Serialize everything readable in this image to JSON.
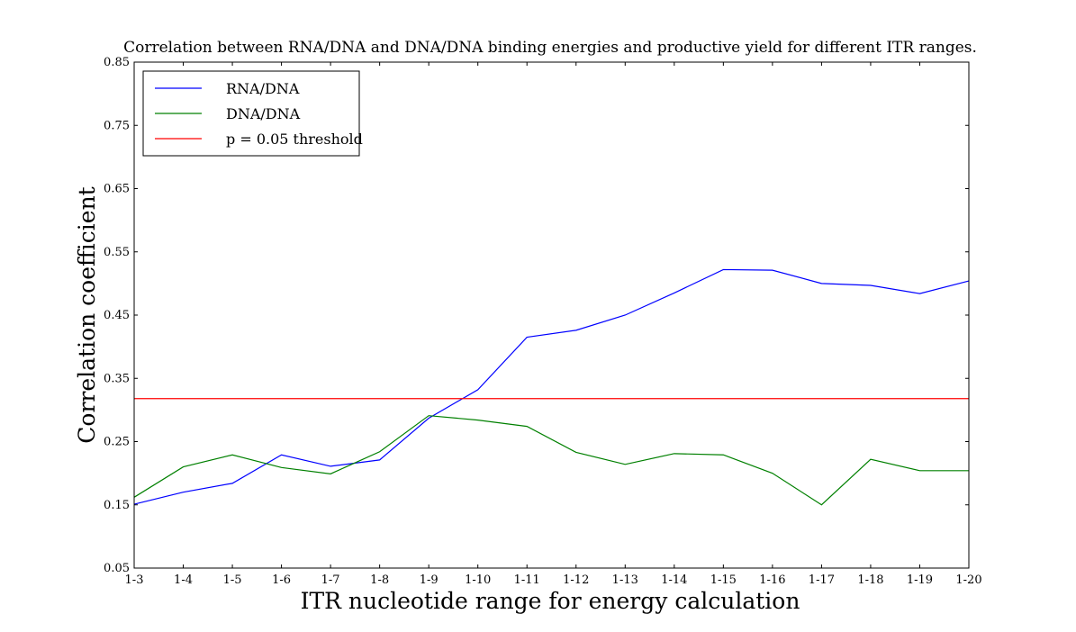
{
  "chart_data": {
    "type": "line",
    "title": "Correlation between RNA/DNA and DNA/DNA binding energies and productive yield for different ITR ranges.",
    "xlabel": "ITR nucleotide range for energy calculation",
    "ylabel": "Correlation coefficient",
    "categories": [
      "1-3",
      "1-4",
      "1-5",
      "1-6",
      "1-7",
      "1-8",
      "1-9",
      "1-10",
      "1-11",
      "1-12",
      "1-13",
      "1-14",
      "1-15",
      "1-16",
      "1-17",
      "1-18",
      "1-19",
      "1-20"
    ],
    "ylim": [
      0.05,
      0.85
    ],
    "yticks": [
      "0.05",
      "0.15",
      "0.25",
      "0.35",
      "0.45",
      "0.55",
      "0.65",
      "0.75",
      "0.85"
    ],
    "legend_position": "top-left",
    "series": [
      {
        "name": "RNA/DNA",
        "color": "#0000ff",
        "values": [
          0.151,
          0.17,
          0.184,
          0.229,
          0.211,
          0.221,
          0.287,
          0.332,
          0.415,
          0.426,
          0.45,
          0.485,
          0.522,
          0.521,
          0.5,
          0.497,
          0.484,
          0.504
        ]
      },
      {
        "name": "DNA/DNA",
        "color": "#008000",
        "values": [
          0.162,
          0.21,
          0.229,
          0.209,
          0.199,
          0.234,
          0.291,
          0.284,
          0.274,
          0.233,
          0.214,
          0.231,
          0.229,
          0.2,
          0.15,
          0.222,
          0.204,
          0.204
        ]
      },
      {
        "name": "p = 0.05 threshold",
        "color": "#ff0000",
        "values": [
          0.318,
          0.318,
          0.318,
          0.318,
          0.318,
          0.318,
          0.318,
          0.318,
          0.318,
          0.318,
          0.318,
          0.318,
          0.318,
          0.318,
          0.318,
          0.318,
          0.318,
          0.318
        ]
      }
    ]
  }
}
